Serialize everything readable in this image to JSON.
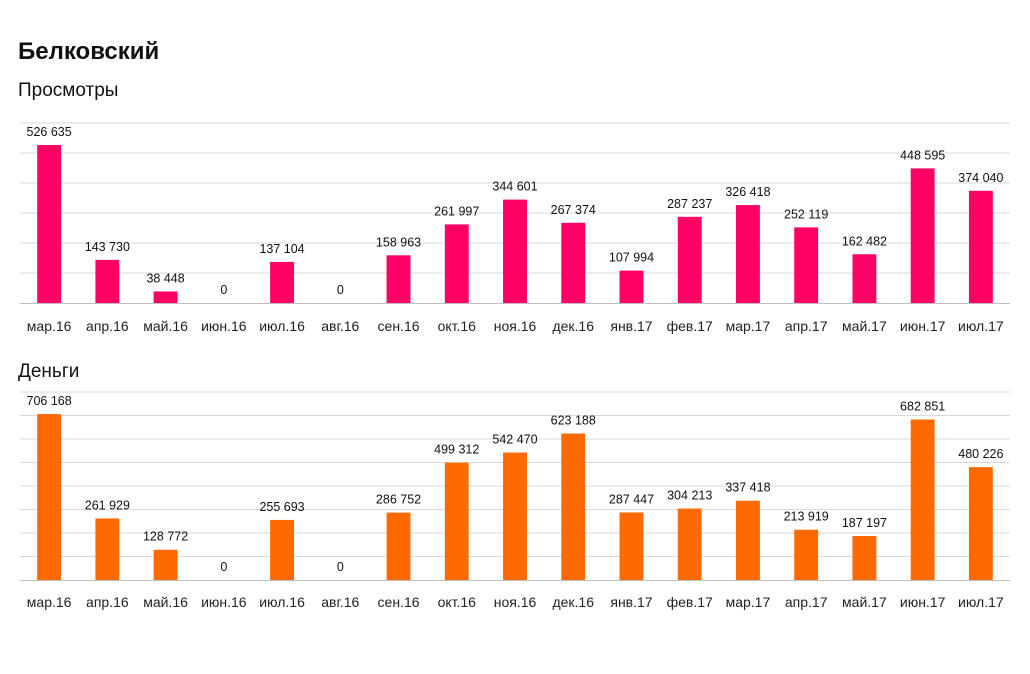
{
  "title": "Белковский",
  "chart_data": [
    {
      "type": "bar",
      "subtitle": "Просмотры",
      "color": "#ff0066",
      "categories": [
        "мар.16",
        "апр.16",
        "май.16",
        "июн.16",
        "июл.16",
        "авг.16",
        "сен.16",
        "окт.16",
        "ноя.16",
        "дек.16",
        "янв.17",
        "фев.17",
        "мар.17",
        "апр.17",
        "май.17",
        "июн.17",
        "июл.17"
      ],
      "values": [
        526635,
        143730,
        38448,
        0,
        137104,
        0,
        158963,
        261997,
        344601,
        267374,
        107994,
        287237,
        326418,
        252119,
        162482,
        448595,
        374040
      ],
      "value_labels": [
        "526 635",
        "143 730",
        "38 448",
        "0",
        "137 104",
        "0",
        "158 963",
        "261 997",
        "344 601",
        "267 374",
        "107 994",
        "287 237",
        "326 418",
        "252 119",
        "162 482",
        "448 595",
        "374 040"
      ],
      "ylim": [
        0,
        600000
      ],
      "grid": true
    },
    {
      "type": "bar",
      "subtitle": "Деньги",
      "color": "#ff6a00",
      "categories": [
        "мар.16",
        "апр.16",
        "май.16",
        "июн.16",
        "июл.16",
        "авг.16",
        "сен.16",
        "окт.16",
        "ноя.16",
        "дек.16",
        "янв.17",
        "фев.17",
        "мар.17",
        "апр.17",
        "май.17",
        "июн.17",
        "июл.17"
      ],
      "values": [
        706168,
        261929,
        128772,
        0,
        255693,
        0,
        286752,
        499312,
        542470,
        623188,
        287447,
        304213,
        337418,
        213919,
        187197,
        682851,
        480226
      ],
      "value_labels": [
        "706 168",
        "261 929",
        "128 772",
        "0",
        "255 693",
        "0",
        "286 752",
        "499 312",
        "542 470",
        "623 188",
        "287 447",
        "304 213",
        "337 418",
        "213 919",
        "187 197",
        "682 851",
        "480 226"
      ],
      "ylim": [
        0,
        800000
      ],
      "grid": true
    }
  ]
}
